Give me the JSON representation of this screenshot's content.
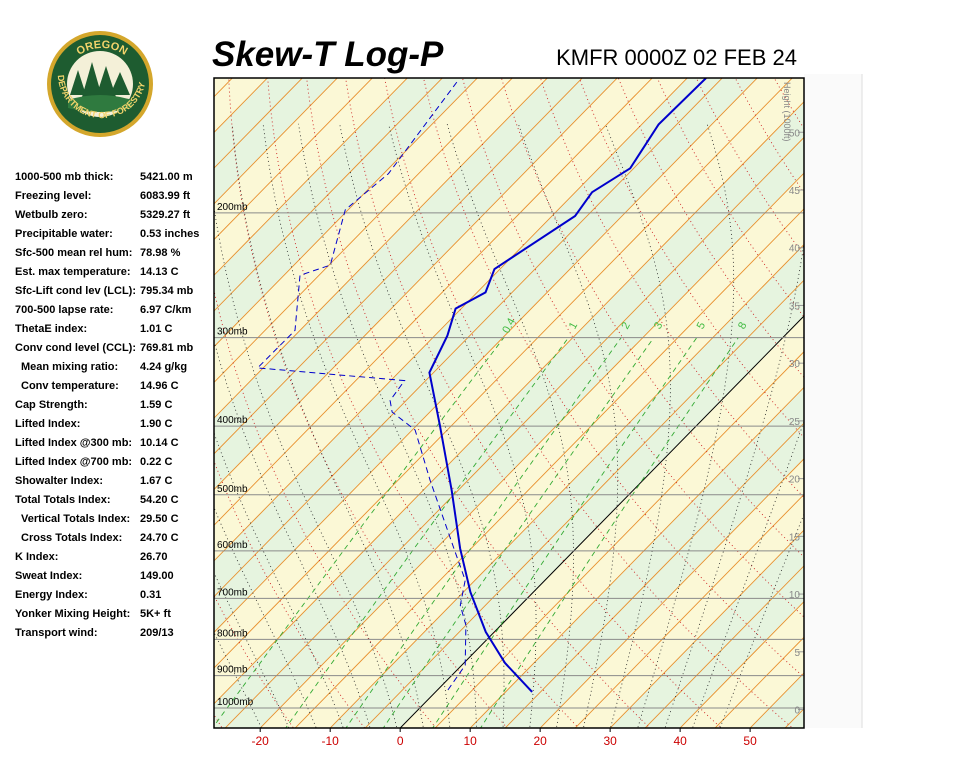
{
  "logo": {
    "top": "OREGON",
    "bottom": "DEPARTMENT OF FORESTRY"
  },
  "stats": [
    {
      "label": "1000-500 mb thick:",
      "value": "5421.00 m"
    },
    {
      "label": "Freezing level:",
      "value": "6083.99 ft"
    },
    {
      "label": "Wetbulb zero:",
      "value": "5329.27 ft"
    },
    {
      "label": "Precipitable water:",
      "value": "0.53 inches"
    },
    {
      "label": "Sfc-500 mean rel hum:",
      "value": "78.98 %"
    },
    {
      "label": "Est. max temperature:",
      "value": "14.13 C"
    },
    {
      "label": "Sfc-Lift cond lev (LCL):",
      "value": "795.34 mb"
    },
    {
      "label": "700-500 lapse rate:",
      "value": "6.97 C/km"
    },
    {
      "label": "ThetaE index:",
      "value": "1.01 C"
    },
    {
      "label": "Conv cond level (CCL):",
      "value": "769.81 mb"
    },
    {
      "label": "Mean mixing ratio:",
      "value": "4.24 g/kg"
    },
    {
      "label": "Conv temperature:",
      "value": "14.96 C"
    },
    {
      "label": "Cap Strength:",
      "value": "1.59 C"
    },
    {
      "label": "Lifted Index:",
      "value": "1.90 C"
    },
    {
      "label": "Lifted Index @300 mb:",
      "value": "10.14 C"
    },
    {
      "label": "Lifted Index @700 mb:",
      "value": "0.22 C"
    },
    {
      "label": "Showalter Index:",
      "value": "1.67 C"
    },
    {
      "label": "Total Totals Index:",
      "value": "54.20 C"
    },
    {
      "label": "Vertical Totals Index:",
      "value": "29.50 C"
    },
    {
      "label": "Cross Totals Index:",
      "value": "24.70 C"
    },
    {
      "label": "K Index:",
      "value": "26.70"
    },
    {
      "label": "Sweat Index:",
      "value": "149.00"
    },
    {
      "label": "Energy Index:",
      "value": "0.31"
    },
    {
      "label": "Yonker Mixing Height:",
      "value": "5K+ ft"
    },
    {
      "label": "Transport wind:",
      "value": "209/13"
    }
  ],
  "chart_data": {
    "type": "skew-t",
    "title": "Skew-T Log-P",
    "subtitle": "KMFR 0000Z 02 FEB 24",
    "xlim": [
      -26.6,
      57.7
    ],
    "xticks": [
      -20,
      -10,
      0,
      10,
      20,
      30,
      40,
      50
    ],
    "ylim": [
      1067,
      129
    ],
    "ylog": true,
    "yticks": [
      {
        "value": 1000,
        "label": "1000mb"
      },
      {
        "value": 900,
        "label": "900mb"
      },
      {
        "value": 800,
        "label": "800mb"
      },
      {
        "value": 700,
        "label": "700mb"
      },
      {
        "value": 600,
        "label": "600mb"
      },
      {
        "value": 500,
        "label": "500mb"
      },
      {
        "value": 400,
        "label": "400mb"
      },
      {
        "value": 300,
        "label": "300mb"
      },
      {
        "value": 200,
        "label": "200mb"
      }
    ],
    "y2label": "Height (1000ft)",
    "y2lim": [
      -1.6,
      54.7
    ],
    "y2ticks": [
      0,
      5,
      10,
      15,
      20,
      25,
      30,
      35,
      40,
      45,
      50
    ],
    "mixing_ratio_lines": [
      0.4,
      1,
      2,
      3,
      5,
      8
    ],
    "temperature": {
      "color": "#0000cc",
      "pressure": [
        949,
        864,
        781,
        686,
        595,
        493,
        399,
        336,
        298,
        273,
        259,
        240,
        202,
        187,
        173,
        150,
        129
      ],
      "temperature": [
        13.8,
        5.9,
        -1.2,
        -9.0,
        -16.6,
        -25.9,
        -36.7,
        -45.6,
        -48.2,
        -50.8,
        -48.8,
        -50.8,
        -46.7,
        -47.6,
        -45.5,
        -47.6,
        -47.3
      ]
    },
    "dewpoint": {
      "color": "#0000cc",
      "pressure": [
        943,
        870,
        764,
        716,
        660,
        599,
        477,
        405,
        382,
        368,
        345,
        331,
        293,
        245,
        237,
        198,
        176,
        130
      ],
      "temperature": [
        1.5,
        0.5,
        -5.0,
        -8.6,
        -11.4,
        -17.1,
        -30.4,
        -39.6,
        -45.4,
        -47.3,
        -48.0,
        -70.8,
        -70.7,
        -77.7,
        -74.8,
        -80.4,
        -79.3,
        -82.4
      ]
    }
  }
}
